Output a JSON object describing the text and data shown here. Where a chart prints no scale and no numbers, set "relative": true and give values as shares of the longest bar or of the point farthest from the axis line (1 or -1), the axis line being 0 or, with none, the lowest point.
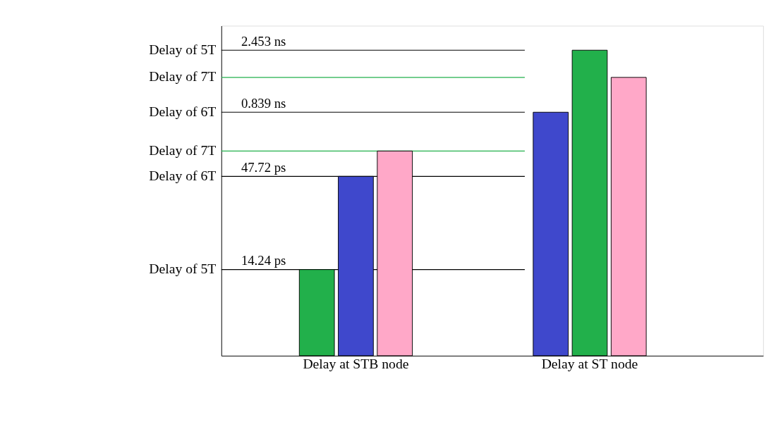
{
  "chart_data": {
    "type": "bar",
    "relative": true,
    "categories": [
      null,
      null,
      null,
      "Delay at STB node",
      null,
      null,
      null,
      null,
      null,
      "Delay at ST node",
      null,
      null,
      null,
      null
    ],
    "values": [
      null,
      null,
      0.282,
      0.587,
      0.67,
      null,
      null,
      null,
      0.797,
      1,
      0.911,
      null,
      null,
      null
    ],
    "colors": [
      null,
      null,
      "#22b04b",
      "#3f48cc",
      "#ffa8c8",
      null,
      null,
      null,
      "#3f48cc",
      "#22b04b",
      "#ffa8c8",
      null,
      null,
      null
    ],
    "ref_lines": [
      {
        "axis": "y",
        "value": 1,
        "label": "2.453 ns",
        "color": "#000000"
      },
      {
        "axis": "y",
        "value": 0.911,
        "color": "#22b04b"
      },
      {
        "axis": "y",
        "value": 0.797,
        "label": "0.839 ns",
        "color": "#000000"
      },
      {
        "axis": "y",
        "value": 0.67,
        "color": "#22b04b"
      },
      {
        "axis": "y",
        "value": 0.587,
        "label": "47.72 ps",
        "color": "#000000"
      },
      {
        "axis": "y",
        "value": 0.282,
        "label": "14.24 ps",
        "color": "#000000"
      }
    ],
    "annotations": [
      "Delay of 5T",
      "Delay of 7T",
      "Delay of 6T",
      "Delay of 7T",
      "Delay of 6T",
      "Delay of 5T"
    ],
    "grid": false
  }
}
